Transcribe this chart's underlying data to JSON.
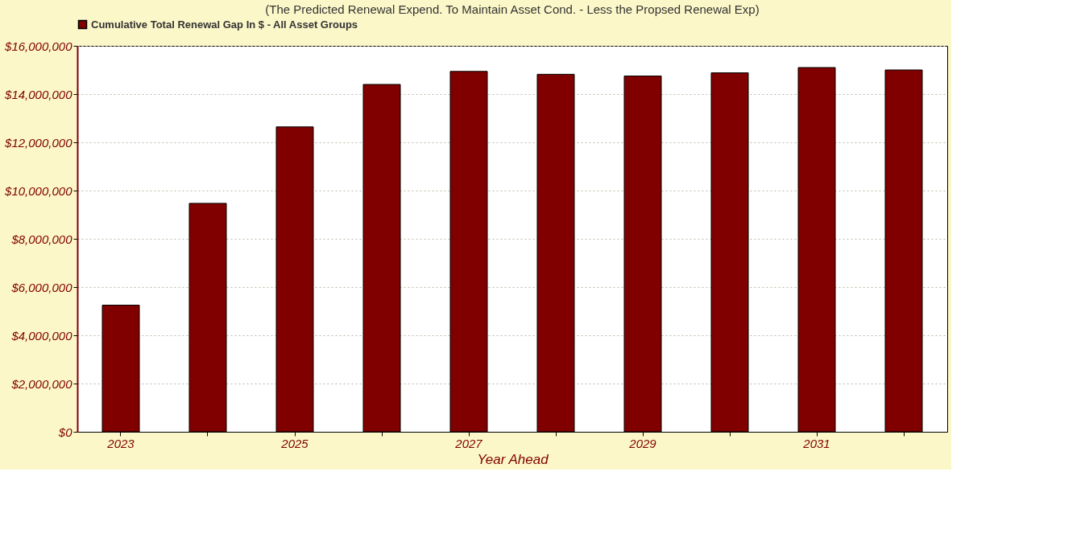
{
  "chart_data": {
    "type": "bar",
    "subtitle": "(The Predicted Renewal Expend. To Maintain Asset Cond. -  Less the Propsed Renewal Exp)",
    "xlabel": "Year Ahead",
    "categories": [
      "2023",
      null,
      "2025",
      null,
      "2027",
      null,
      "2029",
      null,
      "2031",
      null
    ],
    "series": [
      {
        "name": "Cumulative Total Renewal Gap In $ -  All Asset Groups",
        "color": "#800000",
        "values": [
          5250000,
          9470000,
          12640000,
          14400000,
          14940000,
          14820000,
          14750000,
          14880000,
          15100000,
          15000000
        ]
      }
    ],
    "ylim": [
      0,
      16000000
    ],
    "yticks": [
      {
        "value": 0,
        "label": "$0"
      },
      {
        "value": 2000000,
        "label": "$2,000,000"
      },
      {
        "value": 4000000,
        "label": "$4,000,000"
      },
      {
        "value": 6000000,
        "label": "$6,000,000"
      },
      {
        "value": 8000000,
        "label": "$8,000,000"
      },
      {
        "value": 10000000,
        "label": "$10,000,000"
      },
      {
        "value": 12000000,
        "label": "$12,000,000"
      },
      {
        "value": 14000000,
        "label": "$14,000,000"
      },
      {
        "value": 16000000,
        "label": "$16,000,000"
      }
    ],
    "grid": "y",
    "legend": "top"
  }
}
